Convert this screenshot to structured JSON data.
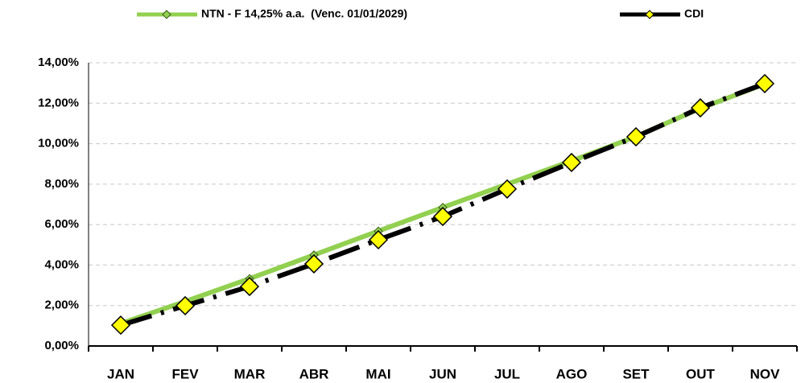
{
  "chart_data": {
    "type": "line",
    "categories": [
      "JAN",
      "FEV",
      "MAR",
      "ABR",
      "MAI",
      "JUN",
      "JUL",
      "AGO",
      "SET",
      "OUT",
      "NOV"
    ],
    "series": [
      {
        "name": "NTN - F 14,25% a.a.  (Venc. 01/01/2029)",
        "color": "#92d050",
        "values": [
          1.11,
          2.2,
          3.33,
          4.5,
          5.68,
          6.85,
          8.0,
          9.15,
          10.35,
          11.75,
          12.95
        ]
      },
      {
        "name": "CDI",
        "color": "#000000",
        "values": [
          1.03,
          1.99,
          2.94,
          4.06,
          5.25,
          6.4,
          7.76,
          9.07,
          10.34,
          11.77,
          12.97
        ]
      }
    ],
    "ylim": [
      0,
      14
    ],
    "yticks": [
      {
        "value": 0,
        "label": "0,00%"
      },
      {
        "value": 2,
        "label": "2,00%"
      },
      {
        "value": 4,
        "label": "4,00%"
      },
      {
        "value": 6,
        "label": "6,00%"
      },
      {
        "value": 8,
        "label": "8,00%"
      },
      {
        "value": 10,
        "label": "10,00%"
      },
      {
        "value": 12,
        "label": "12,00%"
      },
      {
        "value": 14,
        "label": "14,00%"
      }
    ],
    "grid": true,
    "legend": "top"
  }
}
